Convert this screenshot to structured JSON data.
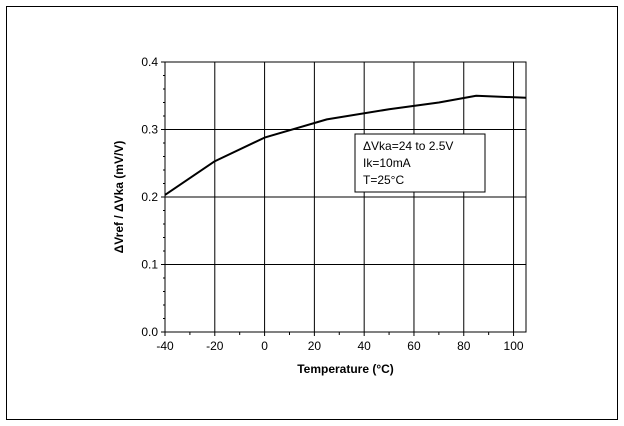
{
  "chart_data": {
    "type": "line",
    "title": "",
    "xlabel": "Temperature (°C)",
    "ylabel": "ΔVref / ΔVka   (mV/V)",
    "xlim": [
      -40,
      105
    ],
    "ylim": [
      0.0,
      0.4
    ],
    "grid": true,
    "xticks": [
      -40,
      -20,
      0,
      20,
      40,
      60,
      80,
      100
    ],
    "yticks": [
      0.0,
      0.1,
      0.2,
      0.3,
      0.4
    ],
    "xtick_labels": [
      "-40",
      "-20",
      "0",
      "20",
      "40",
      "60",
      "80",
      "100"
    ],
    "ytick_labels": [
      "0.0",
      "0.1",
      "0.2",
      "0.3",
      "0.4"
    ],
    "series": [
      {
        "x": [
          -40,
          -20,
          0,
          25,
          50,
          70,
          85,
          105
        ],
        "y": [
          0.203,
          0.253,
          0.288,
          0.315,
          0.33,
          0.34,
          0.35,
          0.347
        ]
      }
    ],
    "annotation": {
      "lines": [
        "ΔVka=24 to 2.5V",
        "Ik=10mA",
        "T=25°C"
      ]
    }
  }
}
